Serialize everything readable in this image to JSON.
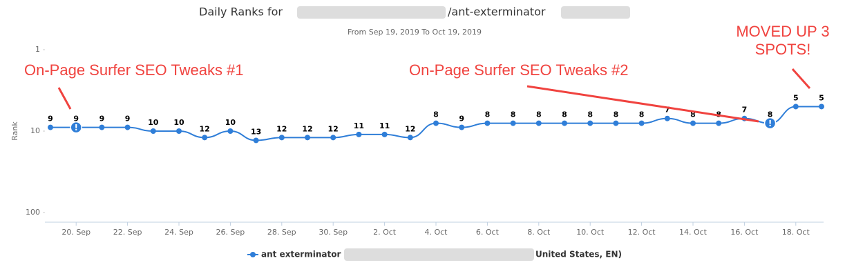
{
  "chart_data": {
    "type": "line",
    "title": "Daily Ranks for",
    "title_suffix": "/ant-exterminator",
    "subtitle": "From Sep 19, 2019 To Oct 19, 2019",
    "y_label": "Rank",
    "log_scale": true,
    "y_reversed": true,
    "ylim": [
      1,
      100
    ],
    "yticks": [
      1,
      10,
      100
    ],
    "categories": [
      null,
      "20. Sep",
      null,
      "22. Sep",
      null,
      "24. Sep",
      null,
      "26. Sep",
      null,
      "28. Sep",
      null,
      "30. Sep",
      null,
      "2. Oct",
      null,
      "4. Oct",
      null,
      "6. Oct",
      null,
      "8. Oct",
      null,
      "10. Oct",
      null,
      "12. Oct",
      null,
      "14. Oct",
      null,
      "16. Oct",
      null,
      "18. Oct",
      null
    ],
    "series": [
      {
        "name": "ant exterminator",
        "name_suffix": "United States, EN)",
        "color": "#2f7ed8",
        "values": [
          9,
          9,
          9,
          9,
          10,
          10,
          12,
          10,
          13,
          12,
          12,
          12,
          11,
          11,
          12,
          8,
          9,
          8,
          8,
          8,
          8,
          8,
          8,
          8,
          7,
          8,
          8,
          7,
          8,
          5,
          5
        ]
      }
    ],
    "flags": [
      1,
      28
    ],
    "flag_text": "!",
    "annotations": [
      "On-Page Surfer SEO Tweaks #1",
      "On-Page Surfer SEO Tweaks #2",
      "MOVED UP 3",
      "SPOTS!"
    ],
    "annotation_color": "#f0433f"
  }
}
